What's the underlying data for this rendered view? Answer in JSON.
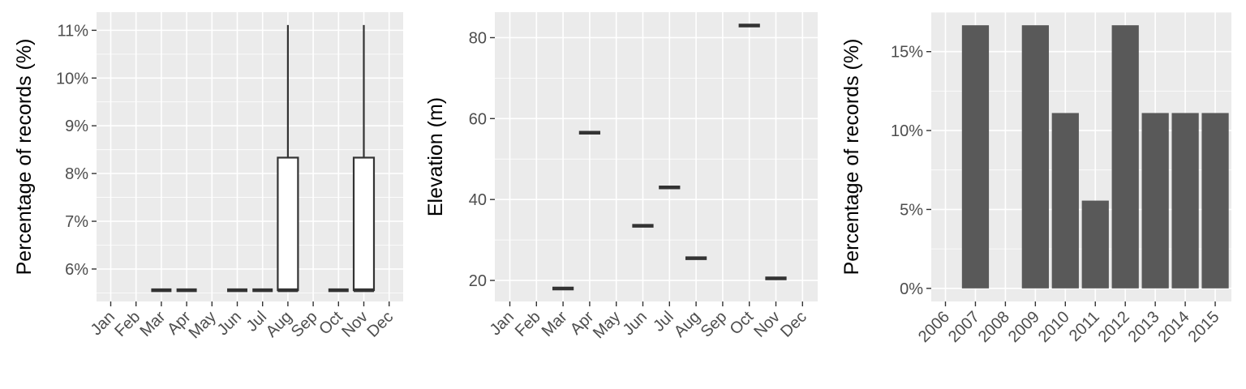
{
  "chart_data": [
    {
      "type": "box",
      "ylabel": "Percentage of records (%)",
      "ylim": [
        5.32,
        11.38
      ],
      "yticks": [
        6,
        7,
        8,
        9,
        10,
        11
      ],
      "ytick_labels": [
        "6%",
        "7%",
        "8%",
        "9%",
        "10%",
        "11%"
      ],
      "categories": [
        "Jan",
        "Feb",
        "Mar",
        "Apr",
        "May",
        "Jun",
        "Jul",
        "Aug",
        "Sep",
        "Oct",
        "Nov",
        "Dec"
      ],
      "boxes": [
        {
          "category": "Mar",
          "min": 5.556,
          "q1": 5.556,
          "median": 5.556,
          "q3": 5.556,
          "max": 5.556
        },
        {
          "category": "Apr",
          "min": 5.556,
          "q1": 5.556,
          "median": 5.556,
          "q3": 5.556,
          "max": 5.556
        },
        {
          "category": "Jun",
          "min": 5.556,
          "q1": 5.556,
          "median": 5.556,
          "q3": 5.556,
          "max": 5.556
        },
        {
          "category": "Jul",
          "min": 5.556,
          "q1": 5.556,
          "median": 5.556,
          "q3": 5.556,
          "max": 5.556
        },
        {
          "category": "Aug",
          "min": 5.556,
          "q1": 5.556,
          "median": 5.556,
          "q3": 8.333,
          "max": 11.111
        },
        {
          "category": "Oct",
          "min": 5.556,
          "q1": 5.556,
          "median": 5.556,
          "q3": 5.556,
          "max": 5.556
        },
        {
          "category": "Nov",
          "min": 5.556,
          "q1": 5.556,
          "median": 5.556,
          "q3": 8.333,
          "max": 11.111
        }
      ]
    },
    {
      "type": "box",
      "ylabel": "Elevation (m)",
      "ylim": [
        14.8,
        86.3
      ],
      "yticks": [
        20,
        40,
        60,
        80
      ],
      "ytick_labels": [
        "20",
        "40",
        "60",
        "80"
      ],
      "categories": [
        "Jan",
        "Feb",
        "Mar",
        "Apr",
        "May",
        "Jun",
        "Jul",
        "Aug",
        "Sep",
        "Oct",
        "Nov",
        "Dec"
      ],
      "boxes": [
        {
          "category": "Mar",
          "median": 18
        },
        {
          "category": "Apr",
          "median": 56.5
        },
        {
          "category": "Jun",
          "median": 33.5
        },
        {
          "category": "Jul",
          "median": 43
        },
        {
          "category": "Aug",
          "median": 25.5
        },
        {
          "category": "Oct",
          "median": 83
        },
        {
          "category": "Nov",
          "median": 20.5
        }
      ]
    },
    {
      "type": "bar",
      "ylabel": "Percentage of records (%)",
      "ylim": [
        -0.83,
        17.5
      ],
      "yticks": [
        0,
        5,
        10,
        15
      ],
      "ytick_labels": [
        "0%",
        "5%",
        "10%",
        "15%"
      ],
      "categories": [
        "2006",
        "2007",
        "2008",
        "2009",
        "2010",
        "2011",
        "2012",
        "2013",
        "2014",
        "2015"
      ],
      "values": [
        0,
        16.67,
        0,
        16.67,
        11.11,
        5.56,
        16.67,
        11.11,
        11.11,
        11.11
      ]
    }
  ]
}
